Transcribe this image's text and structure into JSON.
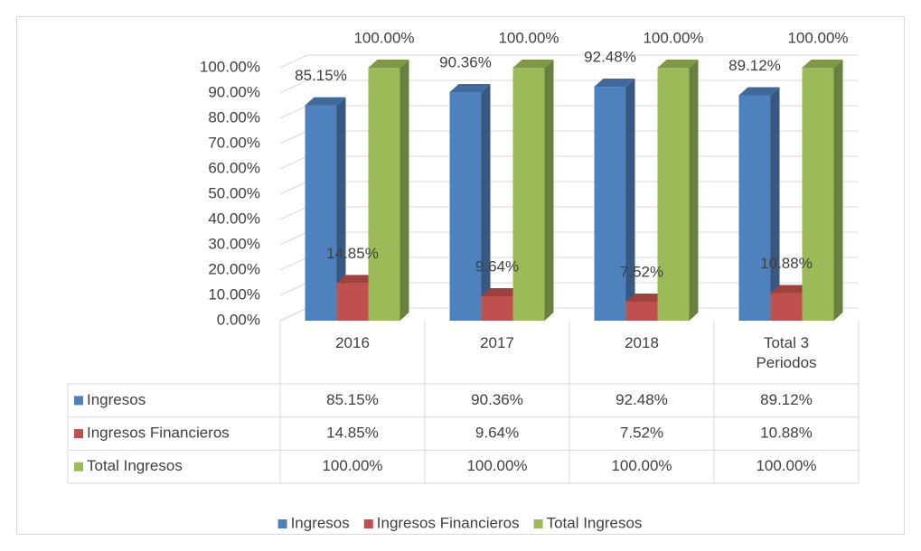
{
  "chart_data": {
    "type": "bar3d",
    "categories": [
      "2016",
      "2017",
      "2018",
      "Total 3 Periodos"
    ],
    "series": [
      {
        "name": "Ingresos",
        "color": "#4f81bd",
        "values": [
          85.15,
          90.36,
          92.48,
          89.12
        ],
        "value_labels": [
          "85.15%",
          "90.36%",
          "92.48%",
          "89.12%"
        ]
      },
      {
        "name": "Ingresos Financieros",
        "color": "#c0504d",
        "values": [
          14.85,
          9.64,
          7.52,
          10.88
        ],
        "value_labels": [
          "14.85%",
          "9.64%",
          "7.52%",
          "10.88%"
        ]
      },
      {
        "name": "Total Ingresos",
        "color": "#9bbb59",
        "values": [
          100,
          100,
          100,
          100
        ],
        "value_labels": [
          "100.00%",
          "100.00%",
          "100.00%",
          "100.00%"
        ]
      }
    ],
    "ylim": [
      0,
      100
    ],
    "yticks": [
      {
        "value": 0,
        "label": "0.00%"
      },
      {
        "value": 10,
        "label": "10.00%"
      },
      {
        "value": 20,
        "label": "20.00%"
      },
      {
        "value": 30,
        "label": "30.00%"
      },
      {
        "value": 40,
        "label": "40.00%"
      },
      {
        "value": 50,
        "label": "50.00%"
      },
      {
        "value": 60,
        "label": "60.00%"
      },
      {
        "value": 70,
        "label": "70.00%"
      },
      {
        "value": 80,
        "label": "80.00%"
      },
      {
        "value": 90,
        "label": "90.00%"
      },
      {
        "value": 100,
        "label": "100.00%"
      }
    ],
    "grid": true,
    "data_table": true,
    "legend": "bottom"
  }
}
